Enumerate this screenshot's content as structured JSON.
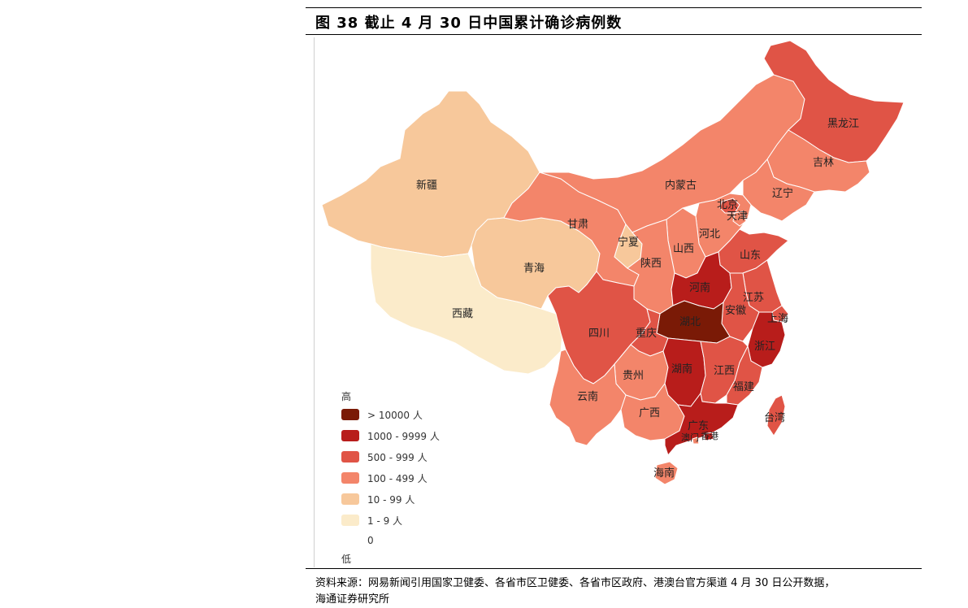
{
  "figure": {
    "title": "图 38 截止 4 月 30 日中国累计确诊病例数",
    "source_line1": "资料来源：网易新闻引用国家卫健委、各省市区卫健委、各省市区政府、港澳台官方渠道 4 月 30 日公开数据，",
    "source_line2": "海通证券研究所"
  },
  "legend": {
    "high_label": "高",
    "low_label": "低",
    "zero_label": "0",
    "items": [
      {
        "label": "> 10000 人",
        "color": "#7a1a06"
      },
      {
        "label": "1000 - 9999 人",
        "color": "#b81d1b"
      },
      {
        "label": "500 - 999 人",
        "color": "#e05446"
      },
      {
        "label": "100 - 499 人",
        "color": "#f3856a"
      },
      {
        "label": "10 - 99 人",
        "color": "#f7c89b"
      },
      {
        "label": "1 - 9 人",
        "color": "#fbebca"
      }
    ]
  },
  "colors": {
    "gt10000": "#7a1a06",
    "c1000": "#b81d1b",
    "c500": "#e05446",
    "c100": "#f3856a",
    "c10": "#f7c89b",
    "c1": "#fbebca"
  },
  "provinces": {
    "xinjiang": "新疆",
    "xizang": "西藏",
    "qinghai": "青海",
    "gansu": "甘肃",
    "neimenggu": "内蒙古",
    "heilongjiang": "黑龙江",
    "jilin": "吉林",
    "liaoning": "辽宁",
    "beijing": "北京",
    "tianjin": "天津",
    "hebei": "河北",
    "shanxi": "山西",
    "ningxia": "宁夏",
    "shaanxi": "陕西",
    "shandong": "山东",
    "henan": "河南",
    "jiangsu": "江苏",
    "anhui": "安徽",
    "shanghai": "上海",
    "hubei": "湖北",
    "sichuan": "四川",
    "chongqing": "重庆",
    "zhejiang": "浙江",
    "guizhou": "贵州",
    "hunan": "湖南",
    "jiangxi": "江西",
    "fujian": "福建",
    "yunnan": "云南",
    "guangxi": "广西",
    "guangdong": "广东",
    "xianggang": "香港",
    "aomen": "澳门",
    "taiwan": "台湾",
    "hainan": "海南"
  }
}
